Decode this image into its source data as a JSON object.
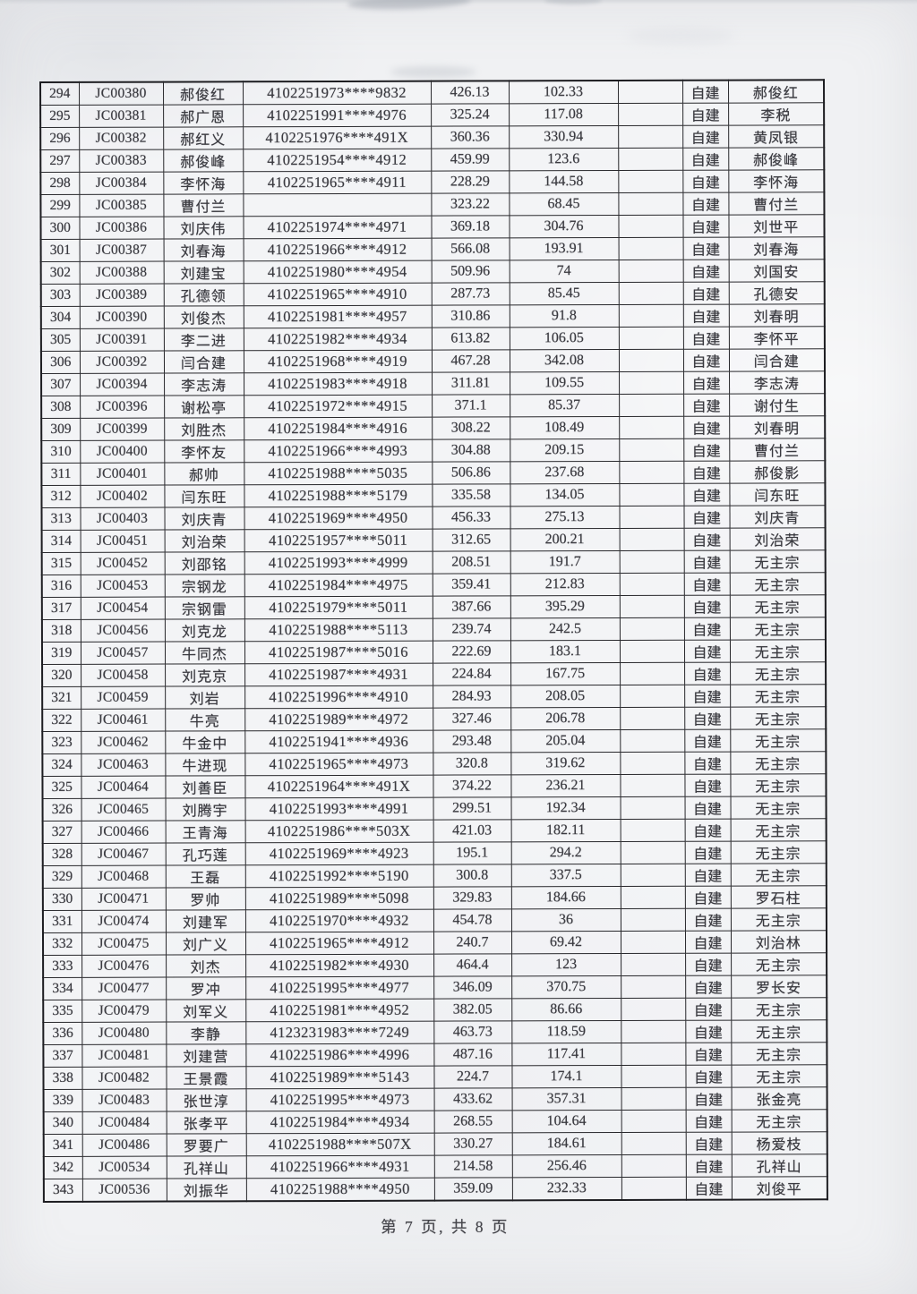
{
  "footer": {
    "text": "第 7 页, 共 8 页"
  },
  "table": {
    "column_keys": [
      "row-index",
      "household-code",
      "name",
      "id-number",
      "amount-1",
      "amount-2",
      "blank",
      "build-type",
      "related-name"
    ],
    "rows": [
      [
        "294",
        "JC00380",
        "郝俊红",
        "4102251973****9832",
        "426.13",
        "102.33",
        "",
        "自建",
        "郝俊红"
      ],
      [
        "295",
        "JC00381",
        "郝广恩",
        "4102251991****4976",
        "325.24",
        "117.08",
        "",
        "自建",
        "李税"
      ],
      [
        "296",
        "JC00382",
        "郝红义",
        "4102251976****491X",
        "360.36",
        "330.94",
        "",
        "自建",
        "黄凤银"
      ],
      [
        "297",
        "JC00383",
        "郝俊峰",
        "4102251954****4912",
        "459.99",
        "123.6",
        "",
        "自建",
        "郝俊峰"
      ],
      [
        "298",
        "JC00384",
        "李怀海",
        "4102251965****4911",
        "228.29",
        "144.58",
        "",
        "自建",
        "李怀海"
      ],
      [
        "299",
        "JC00385",
        "曹付兰",
        "",
        "323.22",
        "68.45",
        "",
        "自建",
        "曹付兰"
      ],
      [
        "300",
        "JC00386",
        "刘庆伟",
        "4102251974****4971",
        "369.18",
        "304.76",
        "",
        "自建",
        "刘世平"
      ],
      [
        "301",
        "JC00387",
        "刘春海",
        "4102251966****4912",
        "566.08",
        "193.91",
        "",
        "自建",
        "刘春海"
      ],
      [
        "302",
        "JC00388",
        "刘建宝",
        "4102251980****4954",
        "509.96",
        "74",
        "",
        "自建",
        "刘国安"
      ],
      [
        "303",
        "JC00389",
        "孔德领",
        "4102251965****4910",
        "287.73",
        "85.45",
        "",
        "自建",
        "孔德安"
      ],
      [
        "304",
        "JC00390",
        "刘俊杰",
        "4102251981****4957",
        "310.86",
        "91.8",
        "",
        "自建",
        "刘春明"
      ],
      [
        "305",
        "JC00391",
        "李二进",
        "4102251982****4934",
        "613.82",
        "106.05",
        "",
        "自建",
        "李怀平"
      ],
      [
        "306",
        "JC00392",
        "闫合建",
        "4102251968****4919",
        "467.28",
        "342.08",
        "",
        "自建",
        "闫合建"
      ],
      [
        "307",
        "JC00394",
        "李志涛",
        "4102251983****4918",
        "311.81",
        "109.55",
        "",
        "自建",
        "李志涛"
      ],
      [
        "308",
        "JC00396",
        "谢松亭",
        "4102251972****4915",
        "371.1",
        "85.37",
        "",
        "自建",
        "谢付生"
      ],
      [
        "309",
        "JC00399",
        "刘胜杰",
        "4102251984****4916",
        "308.22",
        "108.49",
        "",
        "自建",
        "刘春明"
      ],
      [
        "310",
        "JC00400",
        "李怀友",
        "4102251966****4993",
        "304.88",
        "209.15",
        "",
        "自建",
        "曹付兰"
      ],
      [
        "311",
        "JC00401",
        "郝帅",
        "4102251988****5035",
        "506.86",
        "237.68",
        "",
        "自建",
        "郝俊影"
      ],
      [
        "312",
        "JC00402",
        "闫东旺",
        "4102251988****5179",
        "335.58",
        "134.05",
        "",
        "自建",
        "闫东旺"
      ],
      [
        "313",
        "JC00403",
        "刘庆青",
        "4102251969****4950",
        "456.33",
        "275.13",
        "",
        "自建",
        "刘庆青"
      ],
      [
        "314",
        "JC00451",
        "刘治荣",
        "4102251957****5011",
        "312.65",
        "200.21",
        "",
        "自建",
        "刘治荣"
      ],
      [
        "315",
        "JC00452",
        "刘邵铭",
        "4102251993****4999",
        "208.51",
        "191.7",
        "",
        "自建",
        "无主宗"
      ],
      [
        "316",
        "JC00453",
        "宗钢龙",
        "4102251984****4975",
        "359.41",
        "212.83",
        "",
        "自建",
        "无主宗"
      ],
      [
        "317",
        "JC00454",
        "宗钢雷",
        "4102251979****5011",
        "387.66",
        "395.29",
        "",
        "自建",
        "无主宗"
      ],
      [
        "318",
        "JC00456",
        "刘克龙",
        "4102251988****5113",
        "239.74",
        "242.5",
        "",
        "自建",
        "无主宗"
      ],
      [
        "319",
        "JC00457",
        "牛同杰",
        "4102251987****5016",
        "222.69",
        "183.1",
        "",
        "自建",
        "无主宗"
      ],
      [
        "320",
        "JC00458",
        "刘克京",
        "4102251987****4931",
        "224.84",
        "167.75",
        "",
        "自建",
        "无主宗"
      ],
      [
        "321",
        "JC00459",
        "刘岩",
        "4102251996****4910",
        "284.93",
        "208.05",
        "",
        "自建",
        "无主宗"
      ],
      [
        "322",
        "JC00461",
        "牛亮",
        "4102251989****4972",
        "327.46",
        "206.78",
        "",
        "自建",
        "无主宗"
      ],
      [
        "323",
        "JC00462",
        "牛金中",
        "4102251941****4936",
        "293.48",
        "205.04",
        "",
        "自建",
        "无主宗"
      ],
      [
        "324",
        "JC00463",
        "牛进现",
        "4102251965****4973",
        "320.8",
        "319.62",
        "",
        "自建",
        "无主宗"
      ],
      [
        "325",
        "JC00464",
        "刘善臣",
        "4102251964****491X",
        "374.22",
        "236.21",
        "",
        "自建",
        "无主宗"
      ],
      [
        "326",
        "JC00465",
        "刘腾宇",
        "4102251993****4991",
        "299.51",
        "192.34",
        "",
        "自建",
        "无主宗"
      ],
      [
        "327",
        "JC00466",
        "王青海",
        "4102251986****503X",
        "421.03",
        "182.11",
        "",
        "自建",
        "无主宗"
      ],
      [
        "328",
        "JC00467",
        "孔巧莲",
        "4102251969****4923",
        "195.1",
        "294.2",
        "",
        "自建",
        "无主宗"
      ],
      [
        "329",
        "JC00468",
        "王磊",
        "4102251992****5190",
        "300.8",
        "337.5",
        "",
        "自建",
        "无主宗"
      ],
      [
        "330",
        "JC00471",
        "罗帅",
        "4102251989****5098",
        "329.83",
        "184.66",
        "",
        "自建",
        "罗石柱"
      ],
      [
        "331",
        "JC00474",
        "刘建军",
        "4102251970****4932",
        "454.78",
        "36",
        "",
        "自建",
        "无主宗"
      ],
      [
        "332",
        "JC00475",
        "刘广义",
        "4102251965****4912",
        "240.7",
        "69.42",
        "",
        "自建",
        "刘治林"
      ],
      [
        "333",
        "JC00476",
        "刘杰",
        "4102251982****4930",
        "464.4",
        "123",
        "",
        "自建",
        "无主宗"
      ],
      [
        "334",
        "JC00477",
        "罗冲",
        "4102251995****4977",
        "346.09",
        "370.75",
        "",
        "自建",
        "罗长安"
      ],
      [
        "335",
        "JC00479",
        "刘军义",
        "4102251981****4952",
        "382.05",
        "86.66",
        "",
        "自建",
        "无主宗"
      ],
      [
        "336",
        "JC00480",
        "李静",
        "4123231983****7249",
        "463.73",
        "118.59",
        "",
        "自建",
        "无主宗"
      ],
      [
        "337",
        "JC00481",
        "刘建营",
        "4102251986****4996",
        "487.16",
        "117.41",
        "",
        "自建",
        "无主宗"
      ],
      [
        "338",
        "JC00482",
        "王景霞",
        "4102251989****5143",
        "224.7",
        "174.1",
        "",
        "自建",
        "无主宗"
      ],
      [
        "339",
        "JC00483",
        "张世淳",
        "4102251995****4973",
        "433.62",
        "357.31",
        "",
        "自建",
        "张金亮"
      ],
      [
        "340",
        "JC00484",
        "张孝平",
        "4102251984****4934",
        "268.55",
        "104.64",
        "",
        "自建",
        "无主宗"
      ],
      [
        "341",
        "JC00486",
        "罗要广",
        "4102251988****507X",
        "330.27",
        "184.61",
        "",
        "自建",
        "杨爱枝"
      ],
      [
        "342",
        "JC00534",
        "孔祥山",
        "4102251966****4931",
        "214.58",
        "256.46",
        "",
        "自建",
        "孔祥山"
      ],
      [
        "343",
        "JC00536",
        "刘振华",
        "4102251988****4950",
        "359.09",
        "232.33",
        "",
        "自建",
        "刘俊平"
      ]
    ]
  }
}
